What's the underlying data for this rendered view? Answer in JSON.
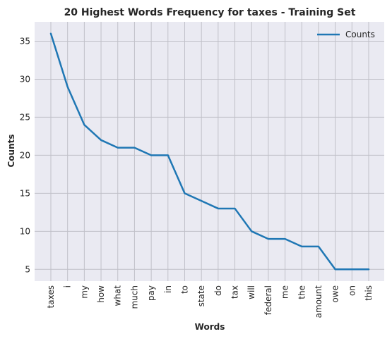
{
  "chart_data": {
    "type": "line",
    "title": "20 Highest Words Frequency for taxes - Training Set",
    "xlabel": "Words",
    "ylabel": "Counts",
    "categories": [
      "taxes",
      "i",
      "my",
      "how",
      "what",
      "much",
      "pay",
      "in",
      "to",
      "state",
      "do",
      "tax",
      "will",
      "federal",
      "me",
      "the",
      "amount",
      "owe",
      "on",
      "this"
    ],
    "series": [
      {
        "name": "Counts",
        "values": [
          36,
          29,
          24,
          22,
          21,
          21,
          20,
          20,
          15,
          14,
          13,
          13,
          10,
          9,
          9,
          8,
          8,
          5,
          5,
          5
        ],
        "color": "#1f77b4"
      }
    ],
    "ylim": [
      3.45,
      37.55
    ],
    "yticks": [
      5,
      10,
      15,
      20,
      25,
      30,
      35
    ],
    "grid": true,
    "legend_position": "top-right",
    "plot_background": "#eaeaf2",
    "grid_color": "#c0c0c8"
  }
}
